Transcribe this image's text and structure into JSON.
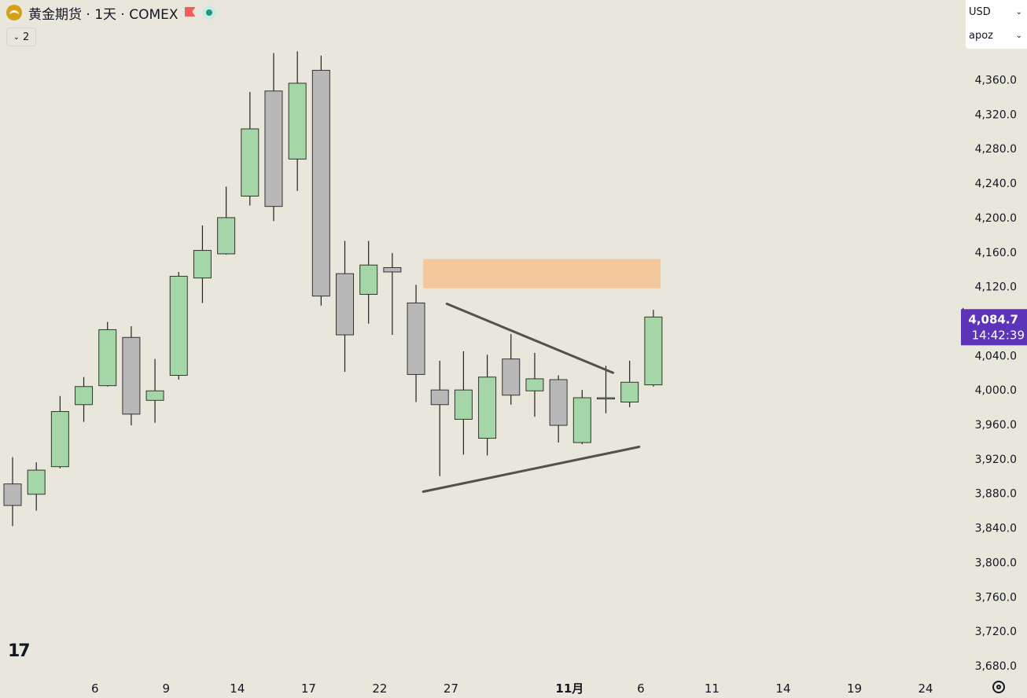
{
  "header": {
    "title": "黄金期货 · 1天 · COMEX",
    "collapse_count": "2"
  },
  "selects": {
    "currency": "USD",
    "unit": "apoz"
  },
  "colors": {
    "up": "#a5d6a7",
    "down": "#b8b8b8",
    "outline": "#333333",
    "zone": "#f3c290",
    "trend": "#555049",
    "badge": "#5b34b7",
    "bg": "#e9e6dc"
  },
  "chart_data": {
    "type": "candlestick",
    "title": "黄金期货 · 1天 · COMEX",
    "ylim": [
      3660,
      4400
    ],
    "y_ticks": [
      "4,360.0",
      "4,320.0",
      "4,280.0",
      "4,240.0",
      "4,200.0",
      "4,160.0",
      "4,120.0",
      "4,080.0",
      "4,040.0",
      "4,000.0",
      "3,960.0",
      "3,920.0",
      "3,880.0",
      "3,840.0",
      "3,800.0",
      "3,760.0",
      "3,720.0",
      "3,680.0"
    ],
    "y_tick_values": [
      4360,
      4320,
      4280,
      4240,
      4200,
      4160,
      4120,
      4080,
      4040,
      4000,
      3960,
      3920,
      3880,
      3840,
      3800,
      3760,
      3720,
      3680
    ],
    "x_ticks": [
      {
        "label": "6",
        "index": 2
      },
      {
        "label": "9",
        "index": 5
      },
      {
        "label": "14",
        "index": 8
      },
      {
        "label": "17",
        "index": 11
      },
      {
        "label": "22",
        "index": 14
      },
      {
        "label": "27",
        "index": 17
      },
      {
        "label": "11月",
        "index": 22,
        "bold": true
      },
      {
        "label": "6",
        "index": 25
      },
      {
        "label": "11",
        "index": 28
      },
      {
        "label": "14",
        "index": 31
      },
      {
        "label": "19",
        "index": 34
      },
      {
        "label": "24",
        "index": 37
      }
    ],
    "candles": [
      {
        "o": 3891,
        "h": 3922,
        "l": 3842,
        "c": 3866
      },
      {
        "o": 3879,
        "h": 3916,
        "l": 3860,
        "c": 3907
      },
      {
        "o": 3911,
        "h": 3993,
        "l": 3909,
        "c": 3975
      },
      {
        "o": 3983,
        "h": 4015,
        "l": 3963,
        "c": 4004
      },
      {
        "o": 4005,
        "h": 4079,
        "l": 4004,
        "c": 4070
      },
      {
        "o": 4061,
        "h": 4074,
        "l": 3959,
        "c": 3972
      },
      {
        "o": 3988,
        "h": 4036,
        "l": 3962,
        "c": 3999
      },
      {
        "o": 4017,
        "h": 4137,
        "l": 4012,
        "c": 4132
      },
      {
        "o": 4130,
        "h": 4191,
        "l": 4101,
        "c": 4162
      },
      {
        "o": 4158,
        "h": 4236,
        "l": 4157,
        "c": 4200
      },
      {
        "o": 4225,
        "h": 4346,
        "l": 4214,
        "c": 4303
      },
      {
        "o": 4347,
        "h": 4391,
        "l": 4196,
        "c": 4213
      },
      {
        "o": 4268,
        "h": 4393,
        "l": 4231,
        "c": 4356
      },
      {
        "o": 4371,
        "h": 4388,
        "l": 4098,
        "c": 4109
      },
      {
        "o": 4135,
        "h": 4173,
        "l": 4021,
        "c": 4064
      },
      {
        "o": 4111,
        "h": 4173,
        "l": 4077,
        "c": 4145
      },
      {
        "o": 4142,
        "h": 4159,
        "l": 4064,
        "c": 4137
      },
      {
        "o": 4101,
        "h": 4122,
        "l": 3986,
        "c": 4018
      },
      {
        "o": 4000,
        "h": 4034,
        "l": 3900,
        "c": 3983
      },
      {
        "o": 3966,
        "h": 4045,
        "l": 3925,
        "c": 4000
      },
      {
        "o": 3944,
        "h": 4041,
        "l": 3924,
        "c": 4015
      },
      {
        "o": 4036,
        "h": 4065,
        "l": 3983,
        "c": 3994
      },
      {
        "o": 3999,
        "h": 4043,
        "l": 3969,
        "c": 4013
      },
      {
        "o": 4012,
        "h": 4017,
        "l": 3939,
        "c": 3959
      },
      {
        "o": 3939,
        "h": 4000,
        "l": 3937,
        "c": 3991
      },
      {
        "o": 3990,
        "h": 4028,
        "l": 3973,
        "c": 3991
      },
      {
        "o": 3986,
        "h": 4034,
        "l": 3980,
        "c": 4009
      },
      {
        "o": 4006,
        "h": 4093,
        "l": 4004,
        "c": 4084.7
      }
    ],
    "zone": {
      "i0": 17.3,
      "i1": 27.3,
      "y_top": 4152,
      "y_bottom": 4118
    },
    "trendlines": [
      {
        "i0": 18.3,
        "y0": 4100,
        "i1": 25.3,
        "y1": 4020
      },
      {
        "i0": 17.3,
        "y0": 3882,
        "i1": 26.4,
        "y1": 3934
      }
    ],
    "last_price": {
      "value": 4084.7,
      "label": "4,084.7",
      "countdown": "14:42:39"
    }
  }
}
